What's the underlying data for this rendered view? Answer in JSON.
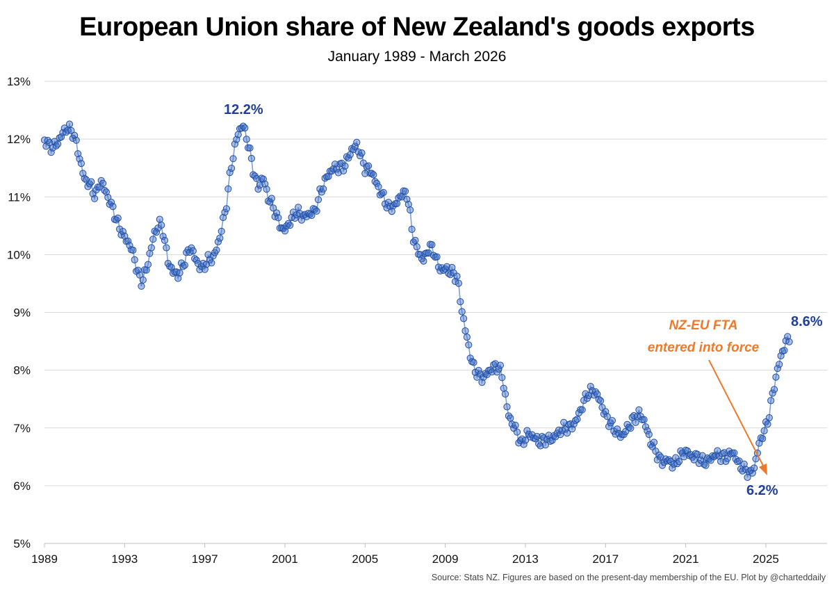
{
  "chart_data": {
    "type": "scatter",
    "title": "European Union share of New Zealand's goods exports",
    "subtitle": "January 1989 - March 2026",
    "source": "Source: Stats NZ.  Figures are based on the present-day membership of the EU. Plot by @charteddaily",
    "ylim": [
      5,
      13
    ],
    "xlim": [
      1989,
      2026.25
    ],
    "y_ticks": [
      "5%",
      "6%",
      "7%",
      "8%",
      "9%",
      "10%",
      "11%",
      "12%",
      "13%"
    ],
    "x_ticks": [
      "1989",
      "1993",
      "1997",
      "2001",
      "2005",
      "2009",
      "2013",
      "2017",
      "2021",
      "2025"
    ],
    "grid": "horizontal",
    "series_color": "#4472c4",
    "anchors": [
      [
        1989.0,
        12.0
      ],
      [
        1989.3,
        11.85
      ],
      [
        1989.6,
        11.9
      ],
      [
        1989.9,
        12.1
      ],
      [
        1990.15,
        12.2
      ],
      [
        1990.45,
        12.1
      ],
      [
        1990.7,
        11.75
      ],
      [
        1991.0,
        11.3
      ],
      [
        1991.3,
        11.2
      ],
      [
        1991.55,
        11.0
      ],
      [
        1991.8,
        11.3
      ],
      [
        1992.1,
        11.05
      ],
      [
        1992.4,
        10.8
      ],
      [
        1992.7,
        10.5
      ],
      [
        1993.0,
        10.3
      ],
      [
        1993.3,
        10.15
      ],
      [
        1993.55,
        9.85
      ],
      [
        1993.8,
        9.5
      ],
      [
        1994.1,
        9.75
      ],
      [
        1994.4,
        10.25
      ],
      [
        1994.7,
        10.55
      ],
      [
        1994.9,
        10.45
      ],
      [
        1995.15,
        9.9
      ],
      [
        1995.4,
        9.7
      ],
      [
        1995.7,
        9.65
      ],
      [
        1996.0,
        9.9
      ],
      [
        1996.3,
        10.15
      ],
      [
        1996.55,
        9.9
      ],
      [
        1996.85,
        9.75
      ],
      [
        1997.15,
        9.9
      ],
      [
        1997.45,
        9.95
      ],
      [
        1997.75,
        10.3
      ],
      [
        1998.05,
        10.8
      ],
      [
        1998.35,
        11.6
      ],
      [
        1998.65,
        12.1
      ],
      [
        1998.9,
        12.25
      ],
      [
        1999.15,
        11.95
      ],
      [
        1999.4,
        11.5
      ],
      [
        1999.65,
        11.15
      ],
      [
        1999.9,
        11.35
      ],
      [
        2000.15,
        11.0
      ],
      [
        2000.45,
        10.8
      ],
      [
        2000.7,
        10.55
      ],
      [
        2000.95,
        10.4
      ],
      [
        2001.3,
        10.6
      ],
      [
        2001.6,
        10.75
      ],
      [
        2001.9,
        10.65
      ],
      [
        2002.2,
        10.7
      ],
      [
        2002.5,
        10.75
      ],
      [
        2002.8,
        11.1
      ],
      [
        2003.1,
        11.35
      ],
      [
        2003.4,
        11.5
      ],
      [
        2003.7,
        11.5
      ],
      [
        2004.0,
        11.55
      ],
      [
        2004.3,
        11.8
      ],
      [
        2004.6,
        11.9
      ],
      [
        2004.8,
        11.7
      ],
      [
        2005.0,
        11.5
      ],
      [
        2005.3,
        11.45
      ],
      [
        2005.6,
        11.2
      ],
      [
        2005.9,
        11.0
      ],
      [
        2006.2,
        10.8
      ],
      [
        2006.5,
        10.85
      ],
      [
        2006.8,
        11.05
      ],
      [
        2007.1,
        11.05
      ],
      [
        2007.4,
        10.3
      ],
      [
        2007.7,
        10.0
      ],
      [
        2007.95,
        9.9
      ],
      [
        2008.2,
        10.15
      ],
      [
        2008.45,
        10.05
      ],
      [
        2008.7,
        9.75
      ],
      [
        2009.0,
        9.75
      ],
      [
        2009.3,
        9.7
      ],
      [
        2009.6,
        9.6
      ],
      [
        2009.8,
        9.1
      ],
      [
        2010.0,
        8.7
      ],
      [
        2010.2,
        8.35
      ],
      [
        2010.4,
        8.05
      ],
      [
        2010.6,
        7.95
      ],
      [
        2010.85,
        7.85
      ],
      [
        2011.1,
        7.95
      ],
      [
        2011.4,
        8.05
      ],
      [
        2011.7,
        8.05
      ],
      [
        2011.9,
        7.8
      ],
      [
        2012.1,
        7.3
      ],
      [
        2012.3,
        7.1
      ],
      [
        2012.55,
        6.95
      ],
      [
        2012.8,
        6.7
      ],
      [
        2013.1,
        6.9
      ],
      [
        2013.4,
        6.85
      ],
      [
        2013.7,
        6.75
      ],
      [
        2014.0,
        6.8
      ],
      [
        2014.3,
        6.8
      ],
      [
        2014.6,
        6.9
      ],
      [
        2014.9,
        7.0
      ],
      [
        2015.2,
        7.0
      ],
      [
        2015.5,
        7.1
      ],
      [
        2015.8,
        7.35
      ],
      [
        2016.1,
        7.6
      ],
      [
        2016.4,
        7.65
      ],
      [
        2016.7,
        7.5
      ],
      [
        2016.95,
        7.25
      ],
      [
        2017.2,
        7.1
      ],
      [
        2017.5,
        6.95
      ],
      [
        2017.8,
        6.85
      ],
      [
        2018.1,
        7.0
      ],
      [
        2018.4,
        7.15
      ],
      [
        2018.7,
        7.25
      ],
      [
        2018.95,
        7.1
      ],
      [
        2019.2,
        6.8
      ],
      [
        2019.5,
        6.6
      ],
      [
        2019.8,
        6.4
      ],
      [
        2020.1,
        6.45
      ],
      [
        2020.4,
        6.35
      ],
      [
        2020.7,
        6.5
      ],
      [
        2021.0,
        6.6
      ],
      [
        2021.3,
        6.5
      ],
      [
        2021.6,
        6.5
      ],
      [
        2021.9,
        6.4
      ],
      [
        2022.2,
        6.45
      ],
      [
        2022.5,
        6.55
      ],
      [
        2022.8,
        6.5
      ],
      [
        2023.1,
        6.5
      ],
      [
        2023.35,
        6.6
      ],
      [
        2023.6,
        6.4
      ],
      [
        2023.85,
        6.3
      ],
      [
        2024.05,
        6.25
      ],
      [
        2024.25,
        6.2
      ],
      [
        2024.45,
        6.35
      ],
      [
        2024.65,
        6.7
      ],
      [
        2024.85,
        6.9
      ],
      [
        2025.05,
        7.05
      ],
      [
        2025.25,
        7.4
      ],
      [
        2025.45,
        7.8
      ],
      [
        2025.65,
        8.1
      ],
      [
        2025.85,
        8.35
      ],
      [
        2026.05,
        8.5
      ],
      [
        2026.2,
        8.6
      ]
    ],
    "annotations": {
      "peak": "12.2%",
      "trough": "6.2%",
      "latest": "8.6%",
      "fta_line1": "NZ-EU FTA",
      "fta_line2": "entered into force"
    }
  }
}
